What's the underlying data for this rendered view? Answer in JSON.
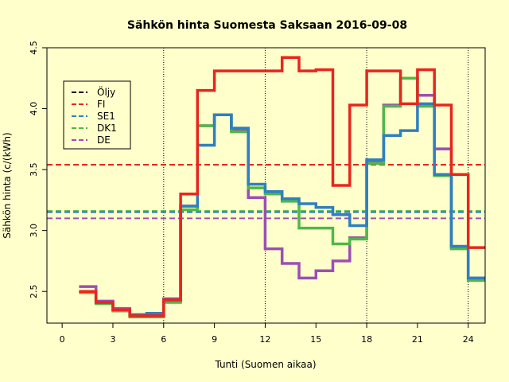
{
  "chart_data": {
    "type": "line",
    "title": "Sähkön hinta Suomesta Saksaan 2016-09-08",
    "xlabel": "Tunti (Suomen aikaa)",
    "ylabel": "Sähkön hinta (c/(kWh)",
    "xlim": [
      -0.9,
      25
    ],
    "ylim": [
      2.24,
      4.5
    ],
    "x_ticks": [
      0,
      3,
      6,
      9,
      12,
      15,
      18,
      21,
      24
    ],
    "x_tick_labels": [
      "0",
      "3",
      "6",
      "9",
      "12",
      "15",
      "18",
      "21",
      "24"
    ],
    "y_ticks": [
      2.5,
      3.0,
      3.5,
      4.0,
      4.5
    ],
    "y_tick_labels": [
      "2.5",
      "3.0",
      "3.5",
      "4.0",
      "4.5"
    ],
    "vertical_gridlines": [
      6,
      12,
      18,
      24
    ],
    "legend_position": "top-left",
    "legend": [
      {
        "label": "Öljy",
        "color": "#000000"
      },
      {
        "label": "FI",
        "color": "#e8261e"
      },
      {
        "label": "SE1",
        "color": "#2f7fc1"
      },
      {
        "label": "DK1",
        "color": "#4fb848"
      },
      {
        "label": "DE",
        "color": "#9b4fb3"
      }
    ],
    "hours": [
      1,
      2,
      3,
      4,
      5,
      6,
      7,
      8,
      9,
      10,
      11,
      12,
      13,
      14,
      15,
      16,
      17,
      18,
      19,
      20,
      21,
      22,
      23,
      24
    ],
    "series": [
      {
        "name": "DE",
        "color": "#9b4fb3",
        "values": [
          2.54,
          2.42,
          2.36,
          2.31,
          2.31,
          2.44,
          3.2,
          3.86,
          3.95,
          3.82,
          3.27,
          2.85,
          2.73,
          2.61,
          2.67,
          2.75,
          2.94,
          3.57,
          4.03,
          4.25,
          4.11,
          3.67,
          2.86,
          2.61
        ]
      },
      {
        "name": "DK1",
        "color": "#4fb848",
        "values": [
          2.49,
          2.4,
          2.34,
          2.29,
          2.29,
          2.41,
          3.17,
          3.86,
          3.95,
          3.81,
          3.35,
          3.3,
          3.24,
          3.02,
          3.02,
          2.89,
          2.93,
          3.55,
          4.02,
          4.25,
          4.02,
          3.45,
          2.85,
          2.59
        ]
      },
      {
        "name": "SE1",
        "color": "#2f7fc1",
        "values": [
          2.5,
          2.41,
          2.35,
          2.31,
          2.32,
          2.43,
          3.2,
          3.7,
          3.95,
          3.84,
          3.38,
          3.32,
          3.26,
          3.22,
          3.19,
          3.13,
          3.04,
          3.58,
          3.78,
          3.82,
          4.04,
          3.46,
          2.87,
          2.61
        ]
      },
      {
        "name": "FI",
        "color": "#e8261e",
        "values": [
          2.5,
          2.41,
          2.35,
          2.3,
          2.3,
          2.43,
          3.3,
          4.15,
          4.31,
          4.31,
          4.31,
          4.31,
          4.42,
          4.31,
          4.32,
          3.37,
          4.03,
          4.31,
          4.31,
          4.04,
          4.32,
          4.03,
          3.46,
          2.86
        ]
      }
    ],
    "hlines": [
      {
        "series": "FI",
        "value": 3.54,
        "color": "#e8261e"
      },
      {
        "series": "DK1",
        "value": 3.16,
        "color": "#4fb848"
      },
      {
        "series": "SE1",
        "value": 3.15,
        "color": "#2f7fc1"
      },
      {
        "series": "DE",
        "value": 3.1,
        "color": "#9b4fb3"
      }
    ]
  }
}
